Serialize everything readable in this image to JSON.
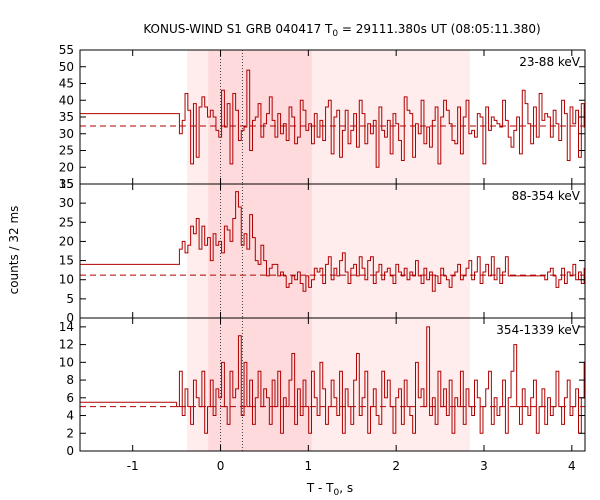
{
  "chart_data": {
    "type": "line",
    "title_main": "KONUS-WIND S1 GRB 040417 T",
    "title_sub": "0",
    "title_rest": " = 29111.380s UT (08:05:11.380)",
    "xlabel_main": "T - T",
    "xlabel_sub": "0",
    "xlabel_rest": ", s",
    "ylabel": "counts / 32 ms",
    "xlim": [
      -1.6,
      4.15
    ],
    "x_ticks": [
      -1,
      0,
      1,
      2,
      3,
      4
    ],
    "colors": {
      "series": "#b00000",
      "shade_outer": "#ffecec",
      "shade_inner": "#ffdadd"
    },
    "shaded_intervals": {
      "outer": [
        -0.38,
        2.84
      ],
      "inner": [
        -0.14,
        1.04
      ]
    },
    "markers_x": [
      0.0,
      0.25
    ],
    "bin_width": 0.032,
    "panels": [
      {
        "label": "23-88 keV",
        "ylim": [
          15,
          55
        ],
        "y_ticks": [
          15,
          20,
          25,
          30,
          35,
          40,
          45,
          50,
          55
        ],
        "pre_level": 36,
        "pre_start": -1.6,
        "pre_end": -0.5,
        "background": 32.3,
        "bins_start": -0.5,
        "values": [
          36,
          30,
          34,
          42,
          37,
          21,
          39,
          23,
          38,
          41,
          38,
          35,
          37,
          35,
          31,
          29,
          43,
          32,
          39,
          21,
          42,
          37,
          28,
          31,
          32,
          49,
          25,
          34,
          35,
          39,
          29,
          33,
          36,
          41,
          34,
          29,
          36,
          30,
          33,
          28,
          38,
          35,
          27,
          29,
          40,
          37,
          31,
          33,
          27,
          36,
          29,
          34,
          28,
          38,
          40,
          24,
          35,
          37,
          23,
          31,
          37,
          27,
          31,
          36,
          26,
          40,
          36,
          27,
          33,
          30,
          34,
          20,
          38,
          31,
          29,
          34,
          24,
          36,
          33,
          28,
          22,
          41,
          37,
          36,
          23,
          33,
          30,
          40,
          27,
          32,
          26,
          34,
          38,
          21,
          35,
          40,
          37,
          33,
          28,
          27,
          38,
          24,
          35,
          40,
          30,
          31,
          29,
          36,
          35,
          21,
          38,
          31,
          35,
          34,
          33,
          32,
          40,
          34,
          29,
          26,
          31,
          35,
          24,
          43,
          39,
          33,
          27,
          38,
          29,
          42,
          34,
          36,
          35,
          29,
          37,
          33,
          28,
          40,
          36,
          22,
          38,
          33,
          37,
          23,
          39,
          32,
          35,
          33,
          36,
          22,
          34,
          30,
          28,
          40,
          36,
          27,
          31,
          34,
          22,
          37,
          33,
          30,
          25,
          34,
          28
        ]
      },
      {
        "label": "88-354 keV",
        "ylim": [
          0,
          35
        ],
        "y_ticks": [
          0,
          5,
          10,
          15,
          20,
          25,
          30,
          35
        ],
        "pre_level": 14,
        "pre_start": -1.6,
        "pre_end": -0.5,
        "background": 11.2,
        "bins_start": -0.5,
        "values": [
          14,
          18,
          20,
          17,
          19,
          24,
          22,
          26,
          18,
          24,
          19,
          21,
          15,
          22,
          19,
          20,
          17,
          24,
          23,
          20,
          26,
          33,
          29,
          19,
          22,
          18,
          27,
          21,
          15,
          14,
          19,
          15,
          11,
          13,
          14,
          14,
          11,
          12,
          11,
          8,
          9,
          11,
          10,
          12,
          9,
          7,
          11,
          8,
          10,
          13,
          12,
          13,
          9,
          14,
          16,
          10,
          13,
          11,
          15,
          17,
          12,
          9,
          13,
          14,
          11,
          16,
          13,
          10,
          15,
          16,
          9,
          12,
          14,
          10,
          12,
          13,
          11,
          9,
          14,
          12,
          11,
          13,
          10,
          12,
          11,
          15,
          11,
          9,
          13,
          10,
          12,
          7,
          11,
          9,
          13,
          11,
          10,
          8,
          11,
          12,
          14,
          10,
          11,
          13,
          15,
          10,
          12,
          16,
          9,
          12,
          14,
          11,
          16,
          10,
          13,
          9,
          12,
          16,
          11,
          11,
          11,
          11,
          11,
          11,
          11,
          11,
          11,
          11,
          11,
          11,
          11,
          10,
          12,
          13,
          11,
          8,
          10,
          13,
          9,
          12,
          11,
          14,
          10,
          12,
          9,
          13,
          11,
          10,
          14,
          15,
          12,
          23,
          17,
          11,
          13,
          14,
          12,
          9,
          16,
          11,
          13,
          10,
          12,
          14,
          6
        ]
      },
      {
        "label": "354-1339 keV",
        "ylim": [
          0,
          15
        ],
        "y_ticks": [
          0,
          2,
          4,
          6,
          8,
          10,
          12,
          14
        ],
        "pre_level": 5.5,
        "pre_start": -1.6,
        "pre_end": -0.5,
        "background": 5.0,
        "bins_start": -0.5,
        "values": [
          5,
          9,
          4,
          7,
          5,
          3,
          8,
          6,
          5,
          9,
          2,
          5,
          8,
          4,
          7,
          6,
          10,
          5,
          3,
          9,
          6,
          7,
          13,
          4,
          10,
          5,
          8,
          3,
          6,
          9,
          5,
          7,
          6,
          3,
          8,
          5,
          9,
          2,
          6,
          5,
          8,
          11,
          3,
          7,
          4,
          8,
          5,
          2,
          9,
          6,
          4,
          10,
          7,
          3,
          5,
          8,
          6,
          4,
          9,
          2,
          7,
          5,
          3,
          8,
          11,
          4,
          6,
          9,
          2,
          5,
          7,
          4,
          3,
          9,
          6,
          8,
          5,
          2,
          6,
          7,
          3,
          8,
          5,
          4,
          2,
          10,
          6,
          7,
          5,
          14,
          4,
          6,
          3,
          9,
          5,
          7,
          4,
          8,
          2,
          6,
          5,
          9,
          3,
          7,
          5,
          4,
          8,
          6,
          2,
          5,
          7,
          9,
          3,
          6,
          4,
          5,
          8,
          2,
          6,
          9,
          12,
          5,
          3,
          7,
          5,
          4,
          6,
          8,
          2,
          5,
          7,
          3,
          6,
          4,
          5,
          9,
          5,
          3,
          6,
          8,
          4,
          5,
          7,
          2,
          6,
          10,
          4,
          5,
          3,
          7,
          6,
          4,
          5,
          8,
          2,
          6,
          5,
          7,
          3,
          4,
          9,
          5,
          6,
          4,
          7
        ]
      }
    ]
  }
}
